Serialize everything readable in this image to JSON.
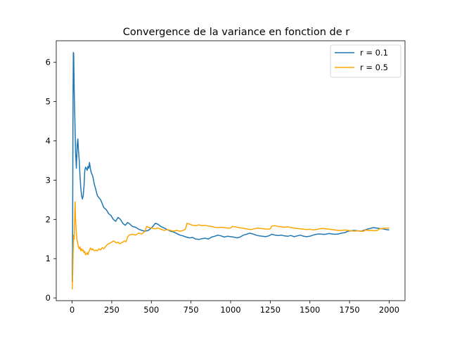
{
  "chart_data": {
    "type": "line",
    "title": "Convergence de la variance en fonction de r",
    "xlabel": "",
    "ylabel": "",
    "xlim": [
      -100,
      2100
    ],
    "ylim": [
      -0.07,
      6.55
    ],
    "xticks": [
      0,
      250,
      500,
      750,
      1000,
      1250,
      1500,
      1750,
      2000
    ],
    "yticks": [
      0,
      1,
      2,
      3,
      4,
      5,
      6
    ],
    "grid": false,
    "legend_position": "top-right",
    "series": [
      {
        "name": "r = 0.1",
        "color": "#1f77b4",
        "points": [
          [
            1,
            0.4
          ],
          [
            3,
            1.3
          ],
          [
            6,
            5.1
          ],
          [
            8,
            6.25
          ],
          [
            10,
            6.22
          ],
          [
            13,
            5.3
          ],
          [
            17,
            4.6
          ],
          [
            22,
            3.7
          ],
          [
            27,
            3.3
          ],
          [
            32,
            3.9
          ],
          [
            36,
            4.05
          ],
          [
            40,
            3.75
          ],
          [
            45,
            3.5
          ],
          [
            50,
            3.1
          ],
          [
            55,
            2.8
          ],
          [
            60,
            2.6
          ],
          [
            65,
            2.52
          ],
          [
            70,
            2.6
          ],
          [
            75,
            2.85
          ],
          [
            80,
            3.25
          ],
          [
            85,
            3.33
          ],
          [
            90,
            3.3
          ],
          [
            95,
            3.25
          ],
          [
            100,
            3.35
          ],
          [
            105,
            3.3
          ],
          [
            110,
            3.45
          ],
          [
            115,
            3.3
          ],
          [
            120,
            3.2
          ],
          [
            130,
            3.1
          ],
          [
            140,
            2.9
          ],
          [
            150,
            2.75
          ],
          [
            160,
            2.6
          ],
          [
            170,
            2.55
          ],
          [
            180,
            2.5
          ],
          [
            190,
            2.4
          ],
          [
            200,
            2.3
          ],
          [
            215,
            2.25
          ],
          [
            230,
            2.15
          ],
          [
            245,
            2.1
          ],
          [
            260,
            2.0
          ],
          [
            275,
            1.95
          ],
          [
            290,
            2.05
          ],
          [
            305,
            2.0
          ],
          [
            320,
            1.9
          ],
          [
            335,
            1.85
          ],
          [
            350,
            1.92
          ],
          [
            365,
            1.88
          ],
          [
            380,
            1.82
          ],
          [
            400,
            1.8
          ],
          [
            420,
            1.75
          ],
          [
            440,
            1.72
          ],
          [
            460,
            1.7
          ],
          [
            480,
            1.72
          ],
          [
            500,
            1.78
          ],
          [
            515,
            1.85
          ],
          [
            525,
            1.9
          ],
          [
            540,
            1.88
          ],
          [
            560,
            1.82
          ],
          [
            580,
            1.78
          ],
          [
            600,
            1.74
          ],
          [
            620,
            1.7
          ],
          [
            640,
            1.68
          ],
          [
            660,
            1.64
          ],
          [
            680,
            1.6
          ],
          [
            700,
            1.58
          ],
          [
            720,
            1.55
          ],
          [
            740,
            1.53
          ],
          [
            760,
            1.54
          ],
          [
            780,
            1.5
          ],
          [
            800,
            1.49
          ],
          [
            820,
            1.51
          ],
          [
            840,
            1.52
          ],
          [
            860,
            1.5
          ],
          [
            880,
            1.55
          ],
          [
            900,
            1.57
          ],
          [
            920,
            1.6
          ],
          [
            940,
            1.58
          ],
          [
            960,
            1.55
          ],
          [
            980,
            1.57
          ],
          [
            1000,
            1.56
          ],
          [
            1020,
            1.55
          ],
          [
            1040,
            1.53
          ],
          [
            1060,
            1.55
          ],
          [
            1080,
            1.6
          ],
          [
            1100,
            1.62
          ],
          [
            1120,
            1.65
          ],
          [
            1140,
            1.63
          ],
          [
            1160,
            1.6
          ],
          [
            1180,
            1.58
          ],
          [
            1200,
            1.57
          ],
          [
            1220,
            1.56
          ],
          [
            1240,
            1.58
          ],
          [
            1260,
            1.62
          ],
          [
            1280,
            1.6
          ],
          [
            1300,
            1.59
          ],
          [
            1320,
            1.6
          ],
          [
            1340,
            1.58
          ],
          [
            1360,
            1.57
          ],
          [
            1380,
            1.59
          ],
          [
            1400,
            1.56
          ],
          [
            1420,
            1.58
          ],
          [
            1440,
            1.6
          ],
          [
            1460,
            1.57
          ],
          [
            1480,
            1.56
          ],
          [
            1500,
            1.57
          ],
          [
            1520,
            1.6
          ],
          [
            1540,
            1.62
          ],
          [
            1560,
            1.63
          ],
          [
            1580,
            1.62
          ],
          [
            1600,
            1.62
          ],
          [
            1620,
            1.64
          ],
          [
            1640,
            1.63
          ],
          [
            1660,
            1.62
          ],
          [
            1680,
            1.63
          ],
          [
            1700,
            1.65
          ],
          [
            1720,
            1.66
          ],
          [
            1740,
            1.7
          ],
          [
            1760,
            1.71
          ],
          [
            1780,
            1.72
          ],
          [
            1800,
            1.71
          ],
          [
            1820,
            1.7
          ],
          [
            1840,
            1.72
          ],
          [
            1860,
            1.75
          ],
          [
            1880,
            1.77
          ],
          [
            1900,
            1.79
          ],
          [
            1920,
            1.78
          ],
          [
            1940,
            1.77
          ],
          [
            1960,
            1.76
          ],
          [
            1980,
            1.74
          ],
          [
            2000,
            1.73
          ]
        ]
      },
      {
        "name": "r = 0.5",
        "color": "#ffa500",
        "points": [
          [
            1,
            0.22
          ],
          [
            4,
            0.6
          ],
          [
            7,
            1.2
          ],
          [
            10,
            1.6
          ],
          [
            13,
            1.5
          ],
          [
            16,
            2.0
          ],
          [
            19,
            2.45
          ],
          [
            22,
            2.0
          ],
          [
            26,
            1.7
          ],
          [
            30,
            1.5
          ],
          [
            35,
            1.4
          ],
          [
            40,
            1.3
          ],
          [
            45,
            1.25
          ],
          [
            50,
            1.3
          ],
          [
            55,
            1.2
          ],
          [
            60,
            1.25
          ],
          [
            65,
            1.2
          ],
          [
            70,
            1.22
          ],
          [
            75,
            1.15
          ],
          [
            80,
            1.18
          ],
          [
            85,
            1.1
          ],
          [
            90,
            1.12
          ],
          [
            95,
            1.15
          ],
          [
            100,
            1.1
          ],
          [
            105,
            1.18
          ],
          [
            110,
            1.2
          ],
          [
            115,
            1.27
          ],
          [
            120,
            1.25
          ],
          [
            125,
            1.22
          ],
          [
            130,
            1.25
          ],
          [
            140,
            1.2
          ],
          [
            150,
            1.22
          ],
          [
            160,
            1.2
          ],
          [
            170,
            1.25
          ],
          [
            180,
            1.22
          ],
          [
            190,
            1.28
          ],
          [
            200,
            1.25
          ],
          [
            210,
            1.3
          ],
          [
            220,
            1.35
          ],
          [
            230,
            1.38
          ],
          [
            240,
            1.4
          ],
          [
            250,
            1.42
          ],
          [
            260,
            1.45
          ],
          [
            270,
            1.43
          ],
          [
            280,
            1.4
          ],
          [
            290,
            1.42
          ],
          [
            300,
            1.38
          ],
          [
            310,
            1.4
          ],
          [
            320,
            1.42
          ],
          [
            330,
            1.45
          ],
          [
            340,
            1.43
          ],
          [
            350,
            1.55
          ],
          [
            360,
            1.6
          ],
          [
            380,
            1.62
          ],
          [
            400,
            1.6
          ],
          [
            420,
            1.65
          ],
          [
            440,
            1.63
          ],
          [
            460,
            1.7
          ],
          [
            470,
            1.82
          ],
          [
            480,
            1.8
          ],
          [
            500,
            1.78
          ],
          [
            520,
            1.76
          ],
          [
            540,
            1.78
          ],
          [
            560,
            1.75
          ],
          [
            580,
            1.72
          ],
          [
            600,
            1.74
          ],
          [
            620,
            1.72
          ],
          [
            640,
            1.7
          ],
          [
            660,
            1.72
          ],
          [
            680,
            1.7
          ],
          [
            700,
            1.72
          ],
          [
            715,
            1.75
          ],
          [
            725,
            1.9
          ],
          [
            740,
            1.88
          ],
          [
            760,
            1.85
          ],
          [
            780,
            1.84
          ],
          [
            800,
            1.86
          ],
          [
            820,
            1.84
          ],
          [
            840,
            1.85
          ],
          [
            860,
            1.83
          ],
          [
            880,
            1.82
          ],
          [
            900,
            1.8
          ],
          [
            920,
            1.79
          ],
          [
            940,
            1.8
          ],
          [
            960,
            1.79
          ],
          [
            980,
            1.78
          ],
          [
            1000,
            1.78
          ],
          [
            1010,
            1.82
          ],
          [
            1030,
            1.81
          ],
          [
            1050,
            1.79
          ],
          [
            1070,
            1.78
          ],
          [
            1090,
            1.77
          ],
          [
            1110,
            1.75
          ],
          [
            1130,
            1.74
          ],
          [
            1150,
            1.76
          ],
          [
            1170,
            1.78
          ],
          [
            1190,
            1.77
          ],
          [
            1210,
            1.76
          ],
          [
            1230,
            1.75
          ],
          [
            1250,
            1.76
          ],
          [
            1260,
            1.83
          ],
          [
            1280,
            1.84
          ],
          [
            1300,
            1.82
          ],
          [
            1320,
            1.81
          ],
          [
            1340,
            1.8
          ],
          [
            1360,
            1.81
          ],
          [
            1380,
            1.79
          ],
          [
            1400,
            1.78
          ],
          [
            1420,
            1.77
          ],
          [
            1440,
            1.76
          ],
          [
            1460,
            1.75
          ],
          [
            1480,
            1.74
          ],
          [
            1500,
            1.75
          ],
          [
            1520,
            1.73
          ],
          [
            1540,
            1.74
          ],
          [
            1560,
            1.76
          ],
          [
            1580,
            1.77
          ],
          [
            1600,
            1.76
          ],
          [
            1620,
            1.75
          ],
          [
            1640,
            1.74
          ],
          [
            1660,
            1.73
          ],
          [
            1680,
            1.72
          ],
          [
            1700,
            1.72
          ],
          [
            1720,
            1.73
          ],
          [
            1740,
            1.72
          ],
          [
            1760,
            1.71
          ],
          [
            1780,
            1.7
          ],
          [
            1800,
            1.71
          ],
          [
            1820,
            1.7
          ],
          [
            1840,
            1.7
          ],
          [
            1850,
            1.73
          ],
          [
            1870,
            1.72
          ],
          [
            1890,
            1.72
          ],
          [
            1910,
            1.71
          ],
          [
            1925,
            1.72
          ],
          [
            1940,
            1.76
          ],
          [
            1960,
            1.77
          ],
          [
            1980,
            1.78
          ],
          [
            2000,
            1.78
          ]
        ]
      }
    ]
  }
}
